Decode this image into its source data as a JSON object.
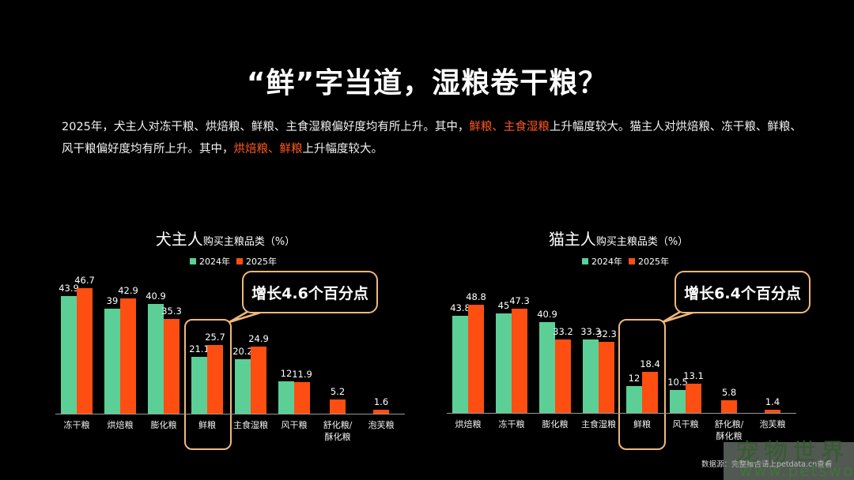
{
  "title": "“鲜”字当道，湿粮卷干粮？",
  "description": {
    "parts": [
      {
        "text": "2025年，犬主人对冻干粮、烘焙粮、鲜粮、主食湿粮偏好度均有所上升。其中，",
        "highlight": false
      },
      {
        "text": "鲜粮、主食湿粮",
        "highlight": true
      },
      {
        "text": "上升幅度较大。猫主人对烘焙粮、冻干粮、鲜粮、风干粮偏好度均有所上升。其中，",
        "highlight": false
      },
      {
        "text": "烘焙粮、鲜粮",
        "highlight": true
      },
      {
        "text": "上升幅度较大。",
        "highlight": false
      }
    ]
  },
  "colors": {
    "y2024": "#5ccf97",
    "y2025": "#ff4e12",
    "highlight_text": "#ff5a1f",
    "callout_border": "#f0b87a"
  },
  "chart_data": [
    {
      "type": "bar",
      "title": "犬主人购买主粮品类（%）",
      "title_big": "犬主人",
      "title_small": "购买主粮品类（%）",
      "legend": [
        "2024年",
        "2025年"
      ],
      "categories": [
        "冻干粮",
        "烘焙粮",
        "膨化粮",
        "鲜粮",
        "主食湿粮",
        "风干粮",
        "舒化粮/酥化粮",
        "泡芙粮"
      ],
      "series": [
        {
          "name": "2024年",
          "values": [
            43.9,
            39,
            40.9,
            21.1,
            20.2,
            12,
            null,
            null
          ]
        },
        {
          "name": "2025年",
          "values": [
            46.7,
            42.9,
            35.3,
            25.7,
            24.9,
            11.9,
            5.2,
            1.6
          ]
        }
      ],
      "highlighted_category": "鲜粮",
      "annotation": "增长4.6个百分点",
      "xlabel": "",
      "ylabel": "%",
      "grid": false
    },
    {
      "type": "bar",
      "title": "猫主人购买主粮品类（%）",
      "title_big": "猫主人",
      "title_small": "购买主粮品类（%）",
      "legend": [
        "2024年",
        "2025年"
      ],
      "categories": [
        "烘焙粮",
        "冻干粮",
        "膨化粮",
        "主食湿粮",
        "鲜粮",
        "风干粮",
        "舒化粮/酥化粮",
        "泡芙粮"
      ],
      "series": [
        {
          "name": "2024年",
          "values": [
            43.8,
            45,
            40.9,
            33.3,
            12,
            10.5,
            null,
            null
          ]
        },
        {
          "name": "2025年",
          "values": [
            48.8,
            47.3,
            33.2,
            32.3,
            18.4,
            13.1,
            5.8,
            1.4
          ]
        }
      ],
      "highlighted_category": "鲜粮",
      "annotation": "增长6.4个百分点",
      "xlabel": "",
      "ylabel": "%",
      "grid": false
    }
  ],
  "source": "数据源：完整报告请上petdata.cn查看",
  "watermark": {
    "line1": "宠物世界",
    "line2": "www.petsworld.cn"
  }
}
